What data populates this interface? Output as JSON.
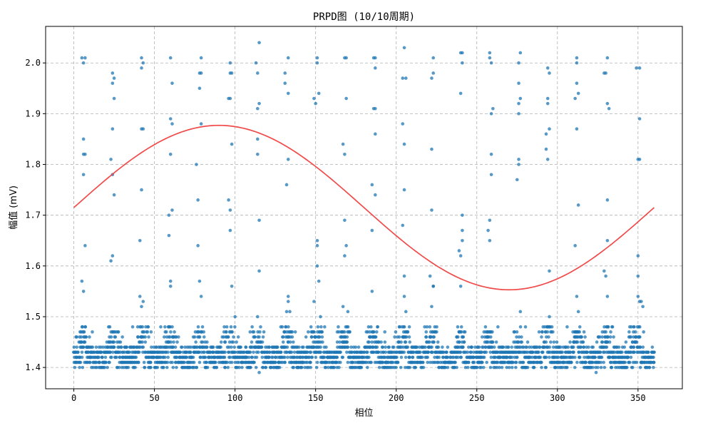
{
  "chart_data": {
    "type": "scatter",
    "title": "PRPD图 (10/10周期)",
    "xlabel": "相位",
    "ylabel": "幅值 (mV)",
    "xlim": [
      -17.5,
      377.5
    ],
    "ylim": [
      1.358,
      2.072
    ],
    "xticks": [
      0,
      50,
      100,
      150,
      200,
      250,
      300,
      350
    ],
    "yticks": [
      1.4,
      1.5,
      1.6,
      1.7,
      1.8,
      1.9,
      2.0
    ],
    "ytick_labels": [
      "1.4",
      "1.5",
      "1.6",
      "1.7",
      "1.8",
      "1.9",
      "2.0"
    ],
    "grid": true,
    "marker_color": "#1f77b4",
    "curve_color": "#f04040",
    "reference_curve": {
      "type": "sine",
      "offset": 1.715,
      "amplitude": 0.162,
      "x_range": [
        0,
        360
      ]
    },
    "baseline_band": {
      "y_min": 1.4,
      "y_max": 1.48,
      "density": "dense",
      "phase_period": 18
    },
    "outliers": [
      [
        5,
        2.01
      ],
      [
        7,
        2.01
      ],
      [
        6,
        2.0
      ],
      [
        6,
        1.85
      ],
      [
        6,
        1.82
      ],
      [
        7,
        1.82
      ],
      [
        6,
        1.78
      ],
      [
        7,
        1.64
      ],
      [
        5,
        1.57
      ],
      [
        6,
        1.55
      ],
      [
        24,
        1.98
      ],
      [
        25,
        1.97
      ],
      [
        24,
        1.96
      ],
      [
        25,
        1.93
      ],
      [
        24,
        1.87
      ],
      [
        23,
        1.81
      ],
      [
        24,
        1.78
      ],
      [
        25,
        1.74
      ],
      [
        24,
        1.62
      ],
      [
        23,
        1.61
      ],
      [
        42,
        2.01
      ],
      [
        43,
        2.0
      ],
      [
        42,
        1.99
      ],
      [
        42,
        1.87
      ],
      [
        43,
        1.87
      ],
      [
        42,
        1.75
      ],
      [
        41,
        1.65
      ],
      [
        41,
        1.54
      ],
      [
        43,
        1.53
      ],
      [
        42,
        1.52
      ],
      [
        60,
        2.01
      ],
      [
        61,
        1.96
      ],
      [
        60,
        1.89
      ],
      [
        61,
        1.88
      ],
      [
        60,
        1.82
      ],
      [
        61,
        1.71
      ],
      [
        59,
        1.7
      ],
      [
        59,
        1.66
      ],
      [
        60,
        1.57
      ],
      [
        60,
        1.56
      ],
      [
        79,
        2.01
      ],
      [
        78,
        1.98
      ],
      [
        79,
        1.98
      ],
      [
        78,
        1.95
      ],
      [
        79,
        1.88
      ],
      [
        76,
        1.8
      ],
      [
        77,
        1.73
      ],
      [
        77,
        1.64
      ],
      [
        78,
        1.57
      ],
      [
        79,
        1.54
      ],
      [
        97,
        2.0
      ],
      [
        97,
        1.98
      ],
      [
        98,
        1.98
      ],
      [
        96,
        1.93
      ],
      [
        97,
        1.93
      ],
      [
        98,
        1.84
      ],
      [
        96,
        1.73
      ],
      [
        97,
        1.71
      ],
      [
        97,
        1.67
      ],
      [
        98,
        1.56
      ],
      [
        100,
        1.5
      ],
      [
        115,
        2.04
      ],
      [
        113,
        2.0
      ],
      [
        114,
        1.98
      ],
      [
        114,
        1.91
      ],
      [
        115,
        1.92
      ],
      [
        114,
        1.85
      ],
      [
        114,
        1.82
      ],
      [
        115,
        1.69
      ],
      [
        115,
        1.59
      ],
      [
        114,
        1.5
      ],
      [
        133,
        2.01
      ],
      [
        131,
        1.98
      ],
      [
        131,
        1.96
      ],
      [
        133,
        1.94
      ],
      [
        133,
        1.81
      ],
      [
        132,
        1.76
      ],
      [
        133,
        1.54
      ],
      [
        133,
        1.53
      ],
      [
        132,
        1.51
      ],
      [
        134,
        1.51
      ],
      [
        151,
        2.01
      ],
      [
        151,
        2.0
      ],
      [
        152,
        1.94
      ],
      [
        149,
        1.93
      ],
      [
        150,
        1.92
      ],
      [
        151,
        1.65
      ],
      [
        151,
        1.64
      ],
      [
        151,
        1.6
      ],
      [
        152,
        1.57
      ],
      [
        153,
        1.5
      ],
      [
        149,
        1.53
      ],
      [
        169,
        2.01
      ],
      [
        168,
        2.01
      ],
      [
        169,
        1.93
      ],
      [
        167,
        1.84
      ],
      [
        168,
        1.82
      ],
      [
        168,
        1.69
      ],
      [
        169,
        1.64
      ],
      [
        168,
        1.62
      ],
      [
        167,
        1.52
      ],
      [
        170,
        1.51
      ],
      [
        187,
        2.01
      ],
      [
        186,
        2.01
      ],
      [
        187,
        1.99
      ],
      [
        186,
        1.91
      ],
      [
        187,
        1.91
      ],
      [
        187,
        1.86
      ],
      [
        185,
        1.76
      ],
      [
        187,
        1.74
      ],
      [
        185,
        1.67
      ],
      [
        185,
        1.55
      ],
      [
        205,
        2.03
      ],
      [
        204,
        1.97
      ],
      [
        206,
        1.97
      ],
      [
        204,
        1.88
      ],
      [
        205,
        1.84
      ],
      [
        205,
        1.75
      ],
      [
        204,
        1.68
      ],
      [
        205,
        1.58
      ],
      [
        205,
        1.54
      ],
      [
        206,
        1.51
      ],
      [
        223,
        2.01
      ],
      [
        222,
        1.97
      ],
      [
        223,
        1.98
      ],
      [
        222,
        1.83
      ],
      [
        222,
        1.71
      ],
      [
        221,
        1.58
      ],
      [
        223,
        1.56
      ],
      [
        223,
        1.56
      ],
      [
        222,
        1.52
      ],
      [
        240,
        2.02
      ],
      [
        241,
        2.02
      ],
      [
        241,
        2.0
      ],
      [
        240,
        1.94
      ],
      [
        241,
        1.7
      ],
      [
        241,
        1.67
      ],
      [
        241,
        1.65
      ],
      [
        239,
        1.63
      ],
      [
        240,
        1.62
      ],
      [
        240,
        1.56
      ],
      [
        258,
        2.02
      ],
      [
        258,
        2.01
      ],
      [
        259,
        2.0
      ],
      [
        260,
        1.91
      ],
      [
        259,
        1.9
      ],
      [
        259,
        1.82
      ],
      [
        259,
        1.78
      ],
      [
        258,
        1.69
      ],
      [
        257,
        1.67
      ],
      [
        258,
        1.65
      ],
      [
        277,
        2.02
      ],
      [
        276,
        2.0
      ],
      [
        276,
        1.96
      ],
      [
        277,
        1.93
      ],
      [
        276,
        1.92
      ],
      [
        276,
        1.9
      ],
      [
        276,
        1.81
      ],
      [
        276,
        1.8
      ],
      [
        275,
        1.77
      ],
      [
        277,
        1.51
      ],
      [
        294,
        1.99
      ],
      [
        295,
        1.98
      ],
      [
        294,
        1.93
      ],
      [
        294,
        1.92
      ],
      [
        295,
        1.87
      ],
      [
        293,
        1.86
      ],
      [
        293,
        1.83
      ],
      [
        294,
        1.81
      ],
      [
        295,
        1.59
      ],
      [
        295,
        1.5
      ],
      [
        312,
        2.01
      ],
      [
        312,
        2.0
      ],
      [
        312,
        1.96
      ],
      [
        313,
        1.94
      ],
      [
        311,
        1.93
      ],
      [
        312,
        1.87
      ],
      [
        313,
        1.72
      ],
      [
        311,
        1.64
      ],
      [
        312,
        1.54
      ],
      [
        313,
        1.51
      ],
      [
        331,
        2.01
      ],
      [
        330,
        1.98
      ],
      [
        329,
        1.98
      ],
      [
        331,
        1.92
      ],
      [
        332,
        1.91
      ],
      [
        331,
        1.73
      ],
      [
        331,
        1.65
      ],
      [
        329,
        1.59
      ],
      [
        330,
        1.58
      ],
      [
        331,
        1.54
      ],
      [
        349,
        1.99
      ],
      [
        351,
        1.99
      ],
      [
        351,
        1.89
      ],
      [
        350,
        1.81
      ],
      [
        351,
        1.81
      ],
      [
        350,
        1.62
      ],
      [
        350,
        1.58
      ],
      [
        350,
        1.54
      ],
      [
        351,
        1.53
      ],
      [
        352,
        1.53
      ],
      [
        353,
        1.52
      ]
    ]
  }
}
